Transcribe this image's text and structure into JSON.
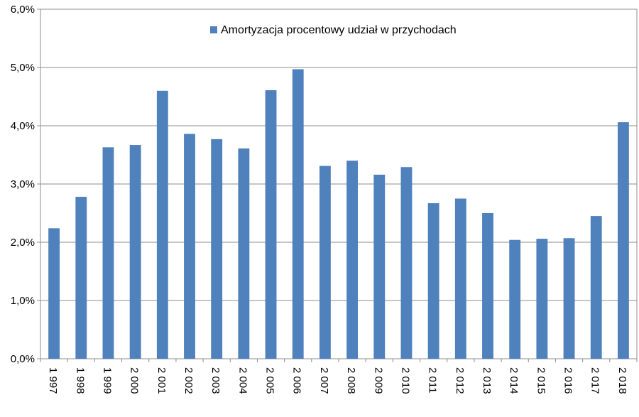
{
  "chart_data": {
    "type": "bar",
    "categories": [
      "1 997",
      "1 998",
      "1 999",
      "2 000",
      "2 001",
      "2 002",
      "2 003",
      "2 004",
      "2 005",
      "2 006",
      "2 007",
      "2 008",
      "2 009",
      "2 010",
      "2 011",
      "2 012",
      "2 013",
      "2 014",
      "2 015",
      "2 016",
      "2 017",
      "2 018"
    ],
    "series": [
      {
        "name": "Amortyzacja procentowy udział w przychodach",
        "color": "#4F81BD",
        "values": [
          2.24,
          2.78,
          3.63,
          3.67,
          4.6,
          3.86,
          3.77,
          3.61,
          4.61,
          4.97,
          3.31,
          3.4,
          3.16,
          3.29,
          2.67,
          2.75,
          2.5,
          2.04,
          2.06,
          2.07,
          2.45,
          4.06
        ]
      }
    ],
    "yticks": [
      "0,0%",
      "1,0%",
      "2,0%",
      "3,0%",
      "4,0%",
      "5,0%",
      "6,0%"
    ],
    "ylim": [
      0,
      6
    ],
    "grid": true,
    "legend_position": "top-center"
  }
}
